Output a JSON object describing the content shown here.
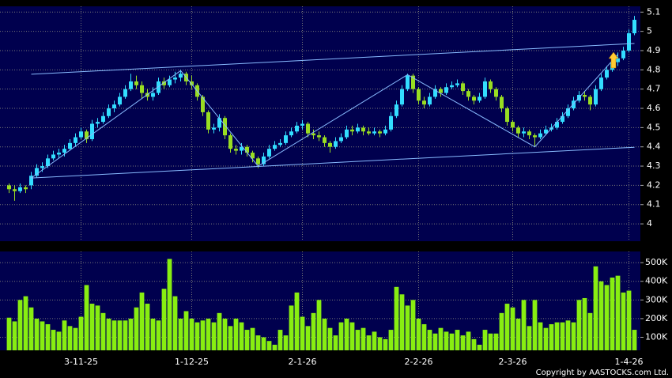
{
  "chart_data": [
    {
      "type": "candlestick",
      "categories": [
        null,
        null,
        null,
        null,
        null,
        null,
        null,
        null,
        null,
        null,
        null,
        null,
        null,
        "3-11-25",
        null,
        null,
        null,
        null,
        null,
        null,
        null,
        null,
        null,
        null,
        null,
        null,
        null,
        null,
        null,
        null,
        null,
        null,
        null,
        "1-12-25",
        null,
        null,
        null,
        null,
        null,
        null,
        null,
        null,
        null,
        null,
        null,
        null,
        null,
        null,
        null,
        null,
        null,
        null,
        null,
        "2-1-26",
        null,
        null,
        null,
        null,
        null,
        null,
        null,
        null,
        null,
        null,
        null,
        null,
        null,
        null,
        null,
        null,
        null,
        null,
        null,
        null,
        "2-2-26",
        null,
        null,
        null,
        null,
        null,
        null,
        null,
        null,
        null,
        null,
        null,
        null,
        null,
        null,
        null,
        null,
        "2-3-26",
        null,
        null,
        null,
        null,
        null,
        null,
        null,
        null,
        null,
        null,
        null,
        null,
        null,
        null,
        null,
        null,
        null,
        null,
        null,
        null,
        "1-4-26",
        null
      ],
      "open": [
        4.2,
        4.18,
        4.17,
        4.19,
        4.2,
        4.25,
        4.29,
        4.3,
        4.34,
        4.36,
        4.37,
        4.39,
        4.42,
        4.45,
        4.48,
        4.44,
        4.52,
        4.53,
        4.56,
        4.6,
        4.62,
        4.66,
        4.7,
        4.74,
        4.72,
        4.68,
        4.66,
        4.68,
        4.74,
        4.72,
        4.75,
        4.76,
        4.78,
        4.74,
        4.72,
        4.66,
        4.58,
        4.49,
        4.5,
        4.55,
        4.46,
        4.39,
        4.38,
        4.4,
        4.37,
        4.34,
        4.31,
        4.35,
        4.39,
        4.41,
        4.42,
        4.46,
        4.48,
        4.51,
        4.52,
        4.47,
        4.46,
        4.45,
        4.42,
        4.4,
        4.43,
        4.45,
        4.49,
        4.48,
        4.5,
        4.48,
        4.47,
        4.48,
        4.47,
        4.49,
        4.56,
        4.62,
        4.7,
        4.77,
        4.7,
        4.64,
        4.62,
        4.66,
        4.7,
        4.68,
        4.71,
        4.72,
        4.73,
        4.69,
        4.66,
        4.64,
        4.66,
        4.74,
        4.7,
        4.66,
        4.6,
        4.53,
        4.5,
        4.47,
        4.48,
        4.46,
        4.45,
        4.47,
        4.49,
        4.5,
        4.53,
        4.56,
        4.6,
        4.64,
        4.67,
        4.66,
        4.62,
        4.7,
        4.76,
        4.8,
        4.84,
        4.86,
        4.9,
        4.99
      ],
      "high": [
        4.21,
        4.2,
        4.21,
        4.2,
        4.27,
        4.31,
        4.32,
        4.36,
        4.38,
        4.39,
        4.41,
        4.44,
        4.47,
        4.5,
        4.49,
        4.54,
        4.55,
        4.58,
        4.62,
        4.64,
        4.68,
        4.72,
        4.78,
        4.77,
        4.74,
        4.7,
        4.71,
        4.76,
        4.76,
        4.77,
        4.79,
        4.8,
        4.79,
        4.77,
        4.73,
        4.67,
        4.59,
        4.52,
        4.57,
        4.56,
        4.47,
        4.41,
        4.42,
        4.41,
        4.38,
        4.35,
        4.37,
        4.41,
        4.43,
        4.44,
        4.48,
        4.5,
        4.53,
        4.54,
        4.53,
        4.49,
        4.48,
        4.46,
        4.43,
        4.45,
        4.47,
        4.51,
        4.51,
        4.52,
        4.51,
        4.5,
        4.5,
        4.49,
        4.51,
        4.58,
        4.64,
        4.72,
        4.78,
        4.78,
        4.71,
        4.66,
        4.68,
        4.72,
        4.71,
        4.73,
        4.74,
        4.75,
        4.74,
        4.7,
        4.67,
        4.68,
        4.76,
        4.75,
        4.71,
        4.67,
        4.61,
        4.54,
        4.51,
        4.5,
        4.49,
        4.47,
        4.49,
        4.51,
        4.52,
        4.55,
        4.58,
        4.62,
        4.66,
        4.69,
        4.69,
        4.67,
        4.72,
        4.78,
        4.82,
        4.86,
        4.89,
        4.92,
        5.01,
        5.08
      ],
      "low": [
        4.16,
        4.12,
        4.16,
        4.16,
        4.18,
        4.24,
        4.27,
        4.29,
        4.33,
        4.34,
        4.35,
        4.38,
        4.4,
        4.44,
        4.42,
        4.43,
        4.5,
        4.52,
        4.55,
        4.58,
        4.61,
        4.65,
        4.69,
        4.7,
        4.65,
        4.64,
        4.64,
        4.67,
        4.7,
        4.71,
        4.73,
        4.74,
        4.72,
        4.7,
        4.64,
        4.56,
        4.47,
        4.47,
        4.48,
        4.44,
        4.37,
        4.36,
        4.36,
        4.35,
        4.32,
        4.29,
        4.3,
        4.34,
        4.38,
        4.4,
        4.41,
        4.45,
        4.47,
        4.49,
        4.45,
        4.44,
        4.43,
        4.4,
        4.37,
        4.39,
        4.42,
        4.44,
        4.46,
        4.47,
        4.46,
        4.46,
        4.46,
        4.45,
        4.46,
        4.48,
        4.55,
        4.61,
        4.69,
        4.68,
        4.62,
        4.6,
        4.61,
        4.65,
        4.66,
        4.67,
        4.7,
        4.71,
        4.67,
        4.64,
        4.62,
        4.63,
        4.65,
        4.68,
        4.64,
        4.58,
        4.51,
        4.48,
        4.45,
        4.45,
        4.44,
        4.4,
        4.44,
        4.46,
        4.48,
        4.49,
        4.52,
        4.55,
        4.59,
        4.63,
        4.64,
        4.59,
        4.61,
        4.69,
        4.75,
        4.79,
        4.82,
        4.85,
        4.89,
        4.98
      ],
      "close": [
        4.18,
        4.17,
        4.19,
        4.18,
        4.25,
        4.29,
        4.3,
        4.34,
        4.36,
        4.37,
        4.39,
        4.42,
        4.45,
        4.48,
        4.44,
        4.52,
        4.53,
        4.56,
        4.6,
        4.62,
        4.66,
        4.7,
        4.74,
        4.72,
        4.68,
        4.66,
        4.68,
        4.74,
        4.72,
        4.75,
        4.76,
        4.78,
        4.74,
        4.72,
        4.66,
        4.58,
        4.49,
        4.5,
        4.55,
        4.46,
        4.39,
        4.38,
        4.4,
        4.37,
        4.34,
        4.31,
        4.35,
        4.39,
        4.41,
        4.42,
        4.46,
        4.48,
        4.51,
        4.52,
        4.47,
        4.46,
        4.45,
        4.42,
        4.4,
        4.43,
        4.45,
        4.49,
        4.48,
        4.5,
        4.48,
        4.47,
        4.48,
        4.47,
        4.49,
        4.56,
        4.62,
        4.7,
        4.77,
        4.7,
        4.64,
        4.62,
        4.66,
        4.7,
        4.68,
        4.71,
        4.72,
        4.73,
        4.69,
        4.66,
        4.64,
        4.66,
        4.74,
        4.7,
        4.66,
        4.6,
        4.53,
        4.5,
        4.47,
        4.48,
        4.46,
        4.45,
        4.47,
        4.49,
        4.5,
        4.53,
        4.56,
        4.6,
        4.64,
        4.67,
        4.66,
        4.62,
        4.7,
        4.76,
        4.8,
        4.84,
        4.86,
        4.9,
        4.99,
        5.06
      ],
      "up_color": "#33ddff",
      "down_color": "#99dd22",
      "ylim": [
        3.91,
        5.13
      ],
      "yticks": [
        4,
        4.1,
        4.2,
        4.3,
        4.4,
        4.5,
        4.6,
        4.7,
        4.8,
        4.9,
        5,
        5.1
      ],
      "grid": true,
      "trend_lines": [
        {
          "x": [
            4,
            113
          ],
          "y": [
            4.777,
            4.937
          ]
        },
        {
          "x": [
            4,
            113
          ],
          "y": [
            4.238,
            4.398
          ]
        },
        {
          "x": [
            4,
            31,
            45,
            72,
            95,
            110
          ],
          "y": [
            4.238,
            4.796,
            4.3,
            4.775,
            4.4,
            4.88
          ]
        }
      ],
      "line_color": "#88bbff"
    },
    {
      "type": "bar",
      "values": [
        205000,
        185000,
        300000,
        320000,
        260000,
        200000,
        185000,
        170000,
        140000,
        130000,
        190000,
        160000,
        150000,
        210000,
        380000,
        280000,
        270000,
        230000,
        200000,
        190000,
        190000,
        190000,
        200000,
        260000,
        340000,
        280000,
        200000,
        190000,
        360000,
        520000,
        320000,
        200000,
        240000,
        200000,
        180000,
        190000,
        200000,
        180000,
        230000,
        200000,
        160000,
        200000,
        180000,
        140000,
        150000,
        110000,
        100000,
        80000,
        60000,
        140000,
        110000,
        270000,
        340000,
        210000,
        160000,
        230000,
        300000,
        200000,
        150000,
        110000,
        180000,
        200000,
        180000,
        140000,
        150000,
        110000,
        130000,
        100000,
        90000,
        140000,
        370000,
        330000,
        270000,
        300000,
        200000,
        170000,
        140000,
        120000,
        150000,
        130000,
        120000,
        140000,
        110000,
        130000,
        90000,
        60000,
        140000,
        120000,
        120000,
        230000,
        280000,
        260000,
        200000,
        300000,
        160000,
        300000,
        180000,
        150000,
        170000,
        180000,
        180000,
        190000,
        180000,
        300000,
        310000,
        230000,
        480000,
        400000,
        380000,
        420000,
        430000,
        340000,
        350000,
        140000
      ],
      "color": "#88ee11",
      "ylim": [
        30000,
        560000
      ],
      "yticks": [
        {
          "value": 100000,
          "label": "100K"
        },
        {
          "value": 200000,
          "label": "200K"
        },
        {
          "value": 300000,
          "label": "300K"
        },
        {
          "value": 400000,
          "label": "400K"
        },
        {
          "value": 500000,
          "label": "500K"
        }
      ],
      "grid": true
    }
  ],
  "copyright": "Copyright by AASTOCKS.com Ltd."
}
